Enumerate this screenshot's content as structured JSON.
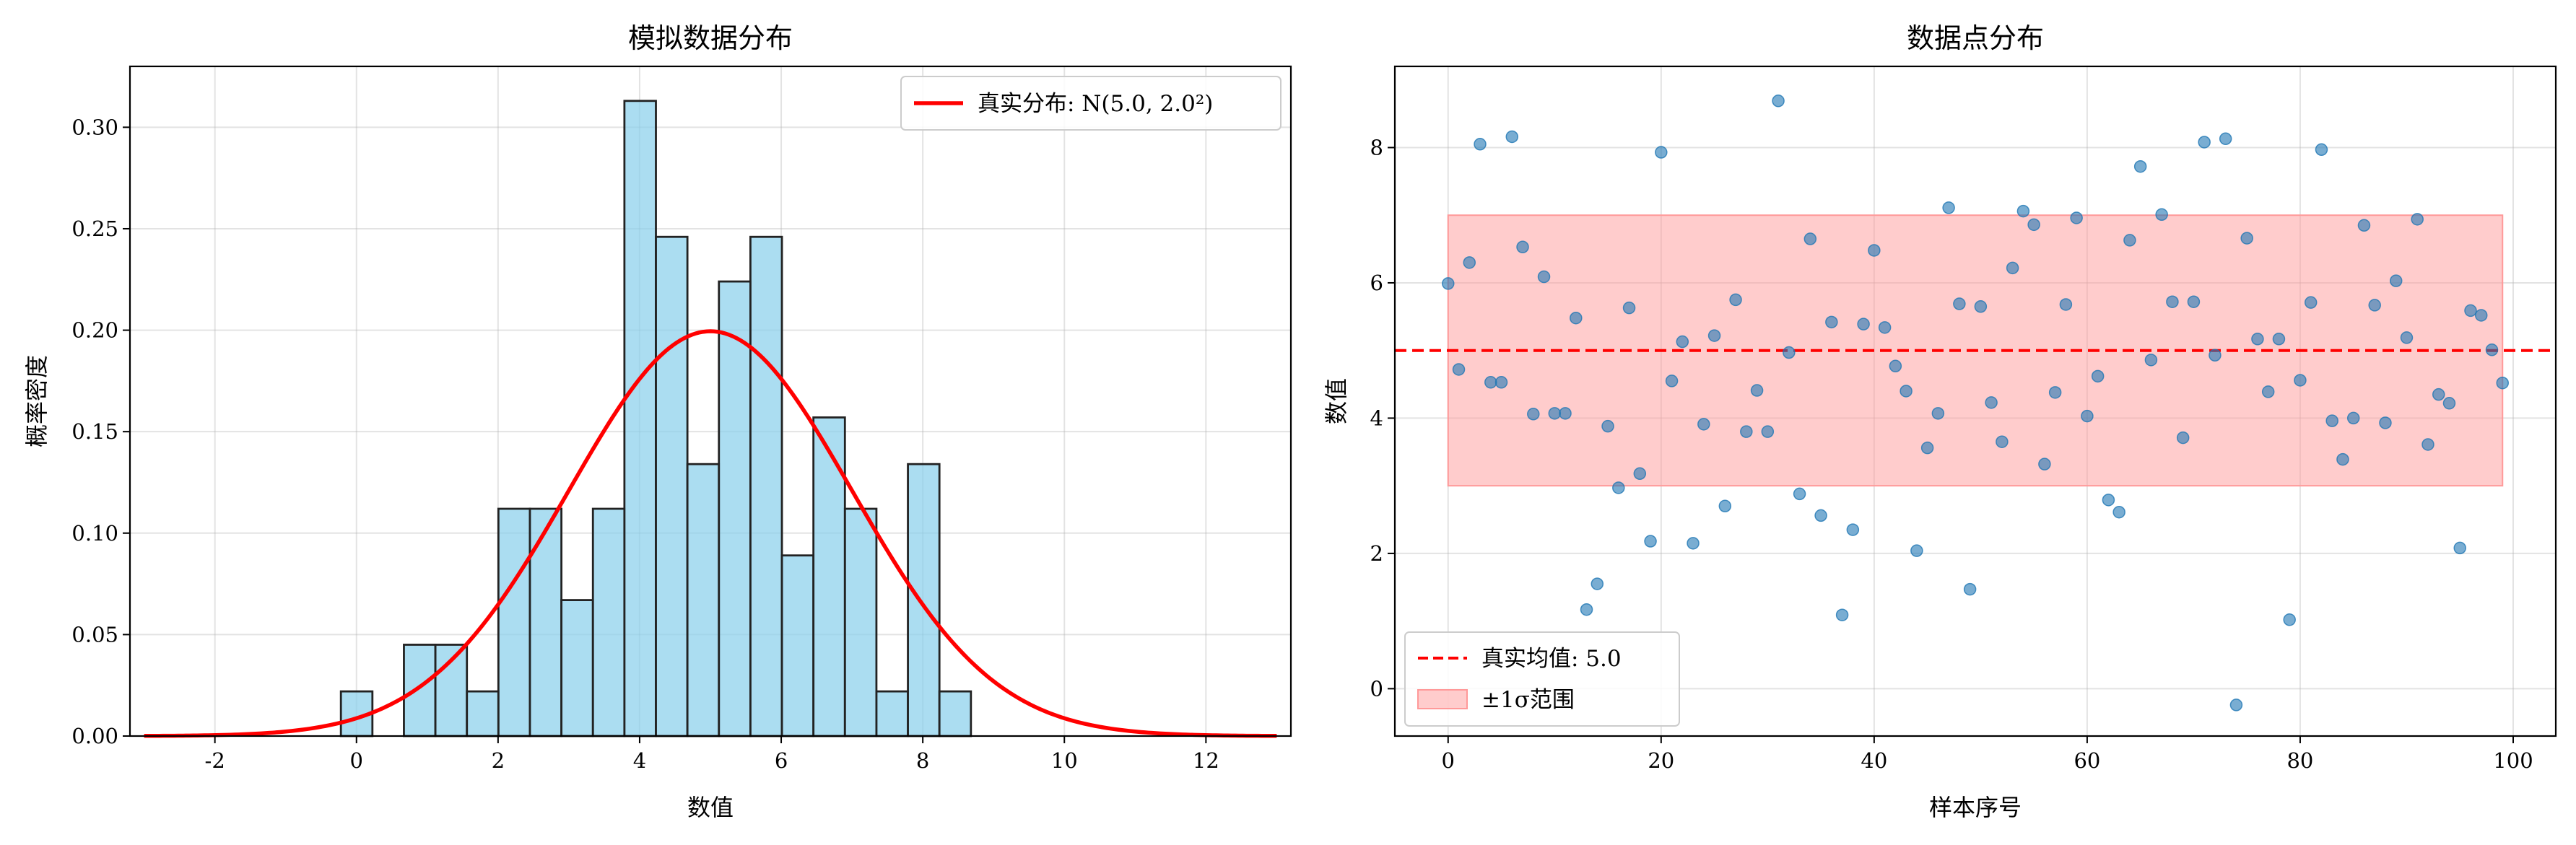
{
  "chart_data": [
    {
      "type": "histogram",
      "title": "模拟数据分布",
      "xlabel": "数值",
      "ylabel": "概率密度",
      "xlim": [
        -3.2,
        13.2
      ],
      "ylim": [
        0,
        0.33
      ],
      "xticks": [
        -2,
        0,
        2,
        4,
        6,
        8,
        10,
        12
      ],
      "xtick_labels": [
        "-2",
        "0",
        "2",
        "4",
        "6",
        "8",
        "10",
        "12"
      ],
      "yticks": [
        0,
        0.05,
        0.1,
        0.15,
        0.2,
        0.25,
        0.3
      ],
      "ytick_labels": [
        "0.00",
        "0.05",
        "0.10",
        "0.15",
        "0.20",
        "0.25",
        "0.30"
      ],
      "grid": true,
      "bins": {
        "edges": [
          -0.22,
          0.225,
          0.67,
          1.115,
          1.56,
          2.005,
          2.45,
          2.895,
          3.34,
          3.785,
          4.23,
          4.675,
          5.12,
          5.565,
          6.01,
          6.455,
          6.9,
          7.345,
          7.79,
          8.235,
          8.68
        ],
        "density": [
          0.022,
          0.0,
          0.045,
          0.045,
          0.022,
          0.112,
          0.112,
          0.067,
          0.112,
          0.313,
          0.246,
          0.134,
          0.224,
          0.246,
          0.089,
          0.157,
          0.112,
          0.022,
          0.134,
          0.022
        ],
        "fill": "#87ceeb",
        "edge": "#222222"
      },
      "curve": {
        "name": "真实分布: N(5.0, 2.0²)",
        "mean": 5.0,
        "std": 2.0,
        "x_range": [
          -3,
          13
        ],
        "color": "#ff0000"
      },
      "legend": "top-right"
    },
    {
      "type": "scatter",
      "title": "数据点分布",
      "xlabel": "样本序号",
      "ylabel": "数值",
      "xlim": [
        -5,
        104
      ],
      "ylim": [
        -0.7,
        9.2
      ],
      "xticks": [
        0,
        20,
        40,
        60,
        80,
        100
      ],
      "xtick_labels": [
        "0",
        "20",
        "40",
        "60",
        "80",
        "100"
      ],
      "yticks": [
        0,
        2,
        4,
        6,
        8
      ],
      "ytick_labels": [
        "0",
        "2",
        "4",
        "6",
        "8"
      ],
      "grid": true,
      "points": {
        "color": "#1f77b4",
        "y": [
          5.99,
          4.72,
          6.3,
          8.05,
          4.53,
          4.53,
          8.16,
          6.53,
          4.06,
          6.09,
          4.07,
          4.07,
          5.48,
          1.17,
          1.55,
          3.88,
          2.97,
          5.63,
          3.18,
          2.18,
          7.93,
          4.55,
          5.13,
          2.15,
          3.91,
          5.22,
          2.7,
          5.75,
          3.8,
          4.41,
          3.8,
          8.69,
          4.97,
          2.88,
          6.65,
          2.56,
          5.42,
          1.09,
          2.35,
          5.39,
          6.48,
          5.34,
          4.77,
          4.4,
          2.04,
          3.56,
          4.07,
          7.11,
          5.69,
          1.47,
          5.65,
          4.23,
          3.65,
          6.22,
          7.06,
          6.86,
          3.32,
          4.38,
          5.68,
          6.96,
          4.03,
          4.62,
          2.79,
          2.61,
          6.63,
          7.72,
          4.86,
          7.01,
          5.72,
          3.71,
          5.72,
          8.08,
          4.93,
          8.13,
          -0.24,
          6.66,
          5.17,
          4.39,
          5.17,
          1.02,
          4.56,
          5.71,
          7.97,
          3.96,
          3.39,
          4.0,
          6.85,
          5.67,
          3.93,
          6.03,
          5.19,
          6.94,
          3.61,
          4.35,
          4.22,
          2.08,
          5.59,
          5.52,
          5.01,
          4.52
        ]
      },
      "mean_line": {
        "name": "真实均值: 5.0",
        "y": 5.0,
        "color": "#ff0000"
      },
      "band": {
        "name": "±1σ范围",
        "y0": 3.0,
        "y1": 7.0,
        "x0": 0,
        "x1": 99,
        "color": "#ff9999"
      },
      "legend": "bottom-left"
    }
  ]
}
